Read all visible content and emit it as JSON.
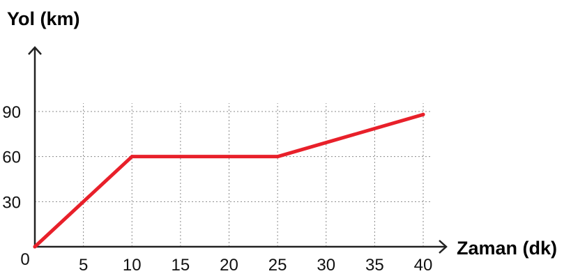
{
  "chart_data": {
    "type": "line",
    "title": "",
    "xlabel": "Zaman (dk)",
    "ylabel": "Yol (km)",
    "x": [
      0,
      10,
      25,
      40
    ],
    "series": [
      {
        "values": [
          0,
          60,
          60,
          88
        ],
        "color": "#e8202a"
      }
    ],
    "xlim": [
      0,
      40
    ],
    "ylim": [
      0,
      90
    ],
    "x_ticks": [
      "0",
      "5",
      "10",
      "15",
      "20",
      "25",
      "30",
      "35",
      "40"
    ],
    "y_ticks": [
      "30",
      "60",
      "90"
    ],
    "grid": true
  }
}
